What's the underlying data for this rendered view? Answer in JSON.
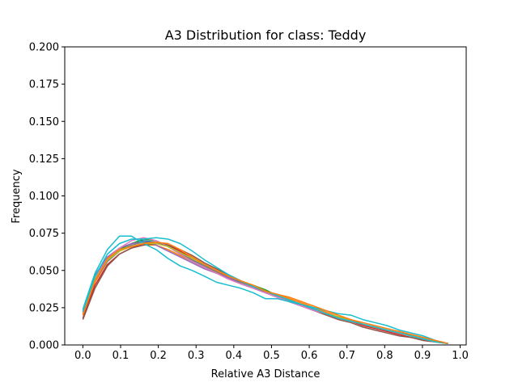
{
  "chart_data": {
    "type": "line",
    "title": "A3 Distribution for class: Teddy",
    "xlabel": "Relative A3 Distance",
    "ylabel": "Frequency",
    "xlim": [
      -0.048,
      1.016
    ],
    "ylim": [
      0.0,
      0.2
    ],
    "x_ticks": [
      "0.0",
      "0.1",
      "0.2",
      "0.3",
      "0.4",
      "0.5",
      "0.6",
      "0.7",
      "0.8",
      "0.9",
      "1.0"
    ],
    "y_ticks": [
      "0.000",
      "0.025",
      "0.050",
      "0.075",
      "0.100",
      "0.125",
      "0.150",
      "0.175",
      "0.200"
    ],
    "grid": false,
    "legend": "none",
    "x": [
      0.0,
      0.032,
      0.065,
      0.097,
      0.129,
      0.161,
      0.194,
      0.226,
      0.258,
      0.29,
      0.323,
      0.355,
      0.387,
      0.419,
      0.452,
      0.484,
      0.516,
      0.548,
      0.581,
      0.613,
      0.645,
      0.677,
      0.71,
      0.742,
      0.774,
      0.806,
      0.839,
      0.871,
      0.903,
      0.935,
      0.968
    ],
    "series": [
      {
        "color": "#1f77b4",
        "values": [
          0.022,
          0.046,
          0.058,
          0.064,
          0.068,
          0.07,
          0.069,
          0.066,
          0.062,
          0.057,
          0.053,
          0.049,
          0.045,
          0.041,
          0.038,
          0.035,
          0.032,
          0.029,
          0.026,
          0.023,
          0.021,
          0.018,
          0.016,
          0.014,
          0.012,
          0.01,
          0.008,
          0.006,
          0.004,
          0.002,
          0.001
        ]
      },
      {
        "color": "#ff7f0e",
        "values": [
          0.02,
          0.042,
          0.056,
          0.063,
          0.066,
          0.067,
          0.067,
          0.064,
          0.06,
          0.056,
          0.052,
          0.049,
          0.045,
          0.042,
          0.039,
          0.036,
          0.034,
          0.031,
          0.028,
          0.025,
          0.022,
          0.019,
          0.017,
          0.014,
          0.012,
          0.01,
          0.008,
          0.007,
          0.005,
          0.003,
          0.001
        ]
      },
      {
        "color": "#2ca02c",
        "values": [
          0.021,
          0.044,
          0.057,
          0.064,
          0.068,
          0.071,
          0.07,
          0.066,
          0.061,
          0.056,
          0.052,
          0.048,
          0.045,
          0.042,
          0.04,
          0.037,
          0.033,
          0.03,
          0.027,
          0.024,
          0.021,
          0.018,
          0.016,
          0.014,
          0.012,
          0.01,
          0.008,
          0.006,
          0.004,
          0.002,
          0.001
        ]
      },
      {
        "color": "#d62728",
        "values": [
          0.018,
          0.04,
          0.054,
          0.061,
          0.065,
          0.068,
          0.069,
          0.067,
          0.063,
          0.058,
          0.054,
          0.05,
          0.046,
          0.043,
          0.039,
          0.036,
          0.033,
          0.03,
          0.027,
          0.024,
          0.021,
          0.018,
          0.016,
          0.013,
          0.011,
          0.009,
          0.007,
          0.005,
          0.003,
          0.002,
          0.001
        ]
      },
      {
        "color": "#9467bd",
        "values": [
          0.023,
          0.047,
          0.059,
          0.065,
          0.068,
          0.069,
          0.067,
          0.063,
          0.059,
          0.055,
          0.051,
          0.048,
          0.045,
          0.042,
          0.039,
          0.036,
          0.033,
          0.03,
          0.027,
          0.024,
          0.021,
          0.019,
          0.016,
          0.014,
          0.012,
          0.01,
          0.008,
          0.006,
          0.004,
          0.002,
          0.001
        ]
      },
      {
        "color": "#8c564b",
        "values": [
          0.017,
          0.038,
          0.053,
          0.061,
          0.065,
          0.067,
          0.068,
          0.067,
          0.064,
          0.06,
          0.055,
          0.051,
          0.047,
          0.043,
          0.039,
          0.035,
          0.032,
          0.029,
          0.026,
          0.023,
          0.02,
          0.017,
          0.015,
          0.012,
          0.01,
          0.008,
          0.006,
          0.005,
          0.003,
          0.002,
          0.001
        ]
      },
      {
        "color": "#e377c2",
        "values": [
          0.022,
          0.045,
          0.058,
          0.065,
          0.07,
          0.072,
          0.07,
          0.066,
          0.061,
          0.056,
          0.052,
          0.048,
          0.044,
          0.041,
          0.038,
          0.035,
          0.032,
          0.029,
          0.026,
          0.023,
          0.021,
          0.018,
          0.016,
          0.014,
          0.012,
          0.01,
          0.008,
          0.006,
          0.004,
          0.002,
          0.001
        ]
      },
      {
        "color": "#7f7f7f",
        "values": [
          0.02,
          0.043,
          0.056,
          0.063,
          0.067,
          0.069,
          0.069,
          0.066,
          0.062,
          0.057,
          0.053,
          0.049,
          0.046,
          0.042,
          0.039,
          0.036,
          0.033,
          0.03,
          0.027,
          0.024,
          0.021,
          0.018,
          0.016,
          0.014,
          0.012,
          0.01,
          0.008,
          0.006,
          0.004,
          0.002,
          0.001
        ]
      },
      {
        "color": "#bcbd22",
        "values": [
          0.021,
          0.044,
          0.057,
          0.063,
          0.066,
          0.068,
          0.068,
          0.066,
          0.062,
          0.058,
          0.054,
          0.05,
          0.046,
          0.043,
          0.04,
          0.036,
          0.033,
          0.03,
          0.027,
          0.024,
          0.021,
          0.019,
          0.016,
          0.014,
          0.012,
          0.01,
          0.008,
          0.006,
          0.004,
          0.002,
          0.001
        ]
      },
      {
        "color": "#17becf",
        "values": [
          0.024,
          0.048,
          0.064,
          0.073,
          0.073,
          0.068,
          0.064,
          0.058,
          0.053,
          0.05,
          0.046,
          0.042,
          0.04,
          0.038,
          0.035,
          0.031,
          0.031,
          0.029,
          0.027,
          0.025,
          0.023,
          0.021,
          0.02,
          0.017,
          0.015,
          0.013,
          0.01,
          0.008,
          0.006,
          0.003,
          0.001
        ]
      },
      {
        "color": "#17becf",
        "values": [
          0.022,
          0.046,
          0.061,
          0.068,
          0.071,
          0.071,
          0.072,
          0.071,
          0.068,
          0.063,
          0.057,
          0.052,
          0.047,
          0.043,
          0.039,
          0.036,
          0.033,
          0.03,
          0.027,
          0.024,
          0.021,
          0.018,
          0.016,
          0.014,
          0.012,
          0.01,
          0.008,
          0.006,
          0.004,
          0.002,
          0.001
        ]
      },
      {
        "color": "#ff7f0e",
        "values": [
          0.02,
          0.043,
          0.058,
          0.064,
          0.066,
          0.068,
          0.069,
          0.068,
          0.064,
          0.059,
          0.054,
          0.05,
          0.046,
          0.043,
          0.04,
          0.036,
          0.034,
          0.032,
          0.029,
          0.026,
          0.023,
          0.02,
          0.017,
          0.015,
          0.013,
          0.011,
          0.009,
          0.007,
          0.005,
          0.003,
          0.001
        ]
      }
    ]
  }
}
